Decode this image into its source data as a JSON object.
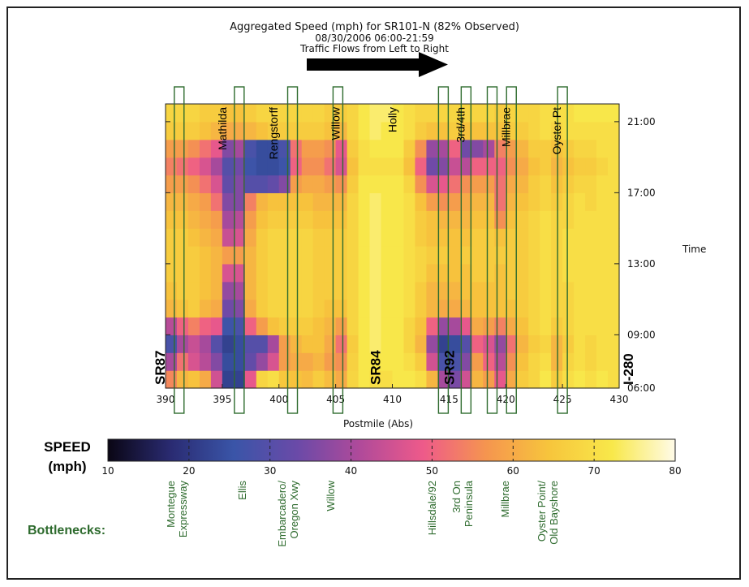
{
  "chart_data": {
    "type": "heatmap",
    "title": "Aggregated Speed (mph) for SR101-N (82% Observed)",
    "subtitle": "08/30/2006 06:00-21:59",
    "note": "Traffic Flows from Left to Right",
    "xlabel": "Postmile (Abs)",
    "ylabel": "Time",
    "xlim": [
      390,
      430
    ],
    "ylim": [
      "06:00",
      "22:00"
    ],
    "x_ticks": [
      "390",
      "395",
      "400",
      "405",
      "410",
      "415",
      "420",
      "425",
      "430"
    ],
    "y_ticks": [
      "06:00",
      "09:00",
      "13:00",
      "17:00",
      "21:00"
    ],
    "colorbar": {
      "label_line1": "SPEED",
      "label_line2": "(mph)",
      "min": 10,
      "max": 80,
      "ticks": [
        "10",
        "20",
        "30",
        "40",
        "50",
        "60",
        "70",
        "80"
      ],
      "colors": [
        "#0a0614",
        "#2a2b72",
        "#3a55a8",
        "#6a4aa8",
        "#b04a9a",
        "#ee5a8a",
        "#f5954f",
        "#f7c53c",
        "#f8e84a",
        "#fffbe8"
      ]
    },
    "columns_postmile": [
      390,
      391,
      392,
      393,
      394,
      395,
      396,
      397,
      398,
      399,
      400,
      401,
      402,
      403,
      404,
      405,
      406,
      407,
      408,
      409,
      410,
      411,
      412,
      413,
      414,
      415,
      416,
      417,
      418,
      419,
      420,
      421,
      422,
      423,
      424,
      425,
      426,
      427,
      428,
      429
    ],
    "rows_hour": [
      6,
      7,
      8,
      9,
      10,
      11,
      12,
      13,
      14,
      15,
      16,
      17,
      18,
      19,
      20,
      21
    ],
    "values_mph": [
      [
        55,
        62,
        64,
        60,
        45,
        22,
        22,
        48,
        68,
        70,
        65,
        64,
        63,
        66,
        63,
        60,
        68,
        72,
        70,
        70,
        72,
        72,
        70,
        62,
        40,
        35,
        45,
        62,
        58,
        48,
        60,
        66,
        68,
        72,
        66,
        70,
        72,
        70,
        72,
        70
      ],
      [
        40,
        52,
        46,
        42,
        36,
        24,
        24,
        32,
        38,
        46,
        58,
        60,
        60,
        62,
        58,
        56,
        67,
        72,
        72,
        72,
        72,
        70,
        66,
        45,
        28,
        28,
        36,
        58,
        50,
        42,
        56,
        64,
        68,
        70,
        62,
        68,
        70,
        68,
        70,
        70
      ],
      [
        28,
        40,
        44,
        40,
        30,
        22,
        24,
        30,
        30,
        40,
        58,
        62,
        64,
        64,
        60,
        52,
        66,
        72,
        74,
        72,
        72,
        68,
        62,
        38,
        22,
        24,
        30,
        50,
        46,
        38,
        52,
        62,
        66,
        68,
        62,
        66,
        70,
        68,
        70,
        70
      ],
      [
        42,
        50,
        54,
        50,
        48,
        26,
        28,
        50,
        58,
        64,
        66,
        66,
        66,
        64,
        62,
        58,
        68,
        72,
        74,
        72,
        72,
        68,
        64,
        50,
        38,
        40,
        48,
        60,
        58,
        54,
        60,
        64,
        68,
        70,
        66,
        68,
        70,
        70,
        70,
        70
      ],
      [
        62,
        64,
        66,
        62,
        60,
        34,
        36,
        60,
        66,
        68,
        68,
        68,
        68,
        66,
        64,
        64,
        68,
        72,
        74,
        72,
        72,
        70,
        66,
        62,
        60,
        60,
        62,
        64,
        64,
        64,
        64,
        66,
        68,
        70,
        68,
        68,
        70,
        70,
        70,
        70
      ],
      [
        64,
        66,
        66,
        64,
        62,
        38,
        40,
        62,
        66,
        68,
        68,
        68,
        68,
        66,
        66,
        66,
        68,
        72,
        74,
        72,
        72,
        70,
        66,
        62,
        62,
        62,
        64,
        64,
        64,
        64,
        66,
        66,
        68,
        70,
        68,
        68,
        70,
        70,
        70,
        70
      ],
      [
        66,
        66,
        66,
        64,
        62,
        46,
        46,
        62,
        66,
        68,
        68,
        68,
        68,
        66,
        66,
        66,
        68,
        72,
        74,
        72,
        72,
        70,
        68,
        64,
        64,
        64,
        64,
        66,
        66,
        64,
        66,
        66,
        68,
        70,
        68,
        70,
        70,
        70,
        70,
        70
      ],
      [
        66,
        66,
        66,
        64,
        62,
        58,
        58,
        62,
        66,
        68,
        68,
        68,
        68,
        66,
        66,
        66,
        68,
        72,
        74,
        72,
        72,
        70,
        68,
        66,
        66,
        64,
        66,
        66,
        66,
        66,
        66,
        66,
        68,
        70,
        68,
        70,
        70,
        70,
        70,
        70
      ],
      [
        66,
        66,
        64,
        62,
        60,
        44,
        46,
        60,
        66,
        68,
        68,
        68,
        68,
        66,
        66,
        66,
        68,
        72,
        74,
        72,
        72,
        70,
        66,
        64,
        64,
        64,
        64,
        66,
        66,
        64,
        66,
        66,
        68,
        70,
        68,
        70,
        70,
        70,
        70,
        70
      ],
      [
        64,
        64,
        62,
        60,
        58,
        40,
        42,
        58,
        64,
        66,
        66,
        66,
        66,
        64,
        64,
        64,
        68,
        72,
        74,
        72,
        72,
        70,
        66,
        64,
        62,
        62,
        62,
        64,
        64,
        56,
        64,
        66,
        68,
        70,
        68,
        68,
        70,
        70,
        70,
        70
      ],
      [
        62,
        62,
        60,
        58,
        52,
        36,
        36,
        54,
        62,
        64,
        64,
        64,
        64,
        62,
        62,
        62,
        68,
        72,
        74,
        72,
        72,
        70,
        64,
        58,
        56,
        58,
        60,
        62,
        62,
        52,
        62,
        64,
        66,
        68,
        66,
        68,
        70,
        68,
        70,
        70
      ],
      [
        58,
        58,
        56,
        52,
        46,
        32,
        36,
        30,
        30,
        32,
        36,
        58,
        60,
        60,
        58,
        56,
        66,
        72,
        72,
        72,
        72,
        68,
        56,
        46,
        48,
        52,
        56,
        58,
        58,
        52,
        60,
        62,
        66,
        68,
        64,
        66,
        68,
        68,
        70,
        70
      ],
      [
        54,
        52,
        50,
        46,
        40,
        30,
        34,
        26,
        24,
        24,
        26,
        50,
        56,
        56,
        52,
        46,
        64,
        70,
        70,
        70,
        70,
        64,
        50,
        34,
        36,
        44,
        42,
        50,
        50,
        50,
        56,
        60,
        64,
        66,
        62,
        64,
        66,
        66,
        68,
        70
      ],
      [
        58,
        58,
        56,
        52,
        48,
        36,
        40,
        28,
        24,
        24,
        28,
        52,
        58,
        58,
        56,
        48,
        66,
        70,
        72,
        72,
        72,
        66,
        56,
        38,
        40,
        50,
        34,
        36,
        40,
        54,
        58,
        62,
        66,
        66,
        64,
        66,
        68,
        68,
        70,
        70
      ],
      [
        66,
        66,
        66,
        64,
        62,
        60,
        60,
        62,
        64,
        66,
        66,
        66,
        66,
        66,
        64,
        62,
        68,
        72,
        74,
        72,
        72,
        70,
        66,
        64,
        64,
        66,
        64,
        64,
        64,
        64,
        66,
        66,
        68,
        70,
        68,
        70,
        70,
        70,
        70,
        70
      ],
      [
        68,
        68,
        68,
        66,
        66,
        64,
        64,
        66,
        68,
        68,
        68,
        68,
        68,
        68,
        66,
        66,
        68,
        72,
        74,
        74,
        72,
        70,
        68,
        68,
        68,
        68,
        68,
        68,
        68,
        66,
        68,
        68,
        68,
        70,
        70,
        70,
        72,
        72,
        72,
        72
      ]
    ],
    "annotations": {
      "arterials": [
        {
          "label": "Mathilda",
          "x": 395
        },
        {
          "label": "Rengstorff",
          "x": 399.5
        },
        {
          "label": "Willow",
          "x": 405
        },
        {
          "label": "Holly",
          "x": 410
        },
        {
          "label": "3rd/4th",
          "x": 416
        },
        {
          "label": "Millbrae",
          "x": 420
        },
        {
          "label": "Oyster Pt",
          "x": 424.5
        }
      ],
      "routes": [
        {
          "label": "SR87",
          "x": 389.5
        },
        {
          "label": "SR84",
          "x": 408.5
        },
        {
          "label": "SR92",
          "x": 415
        },
        {
          "label": "I-280",
          "x": 430.8
        }
      ],
      "bottleneck_boxes": [
        391.2,
        396.5,
        401.2,
        405.2,
        414.5,
        416.5,
        418.8,
        420.5,
        425
      ]
    }
  },
  "bottlenecks": {
    "title": "Bottlenecks:",
    "items": [
      {
        "line1": "Montegue",
        "line2": "Expressway"
      },
      {
        "line1": "Ellis",
        "line2": ""
      },
      {
        "line1": "Embarcadero/",
        "line2": "Oregon Xwy"
      },
      {
        "line1": "Willow",
        "line2": ""
      },
      {
        "line1": "Hillsdale/92",
        "line2": ""
      },
      {
        "line1": "3rd On",
        "line2": "Peninsula"
      },
      {
        "line1": "Millbrae",
        "line2": ""
      },
      {
        "line1": "Oyster Point/",
        "line2": "Old Bayshore"
      }
    ]
  },
  "colors": {
    "box_stroke": "#2e6b2e",
    "arrow": "#000000",
    "bottleneck_text": "#2e6b2e"
  }
}
